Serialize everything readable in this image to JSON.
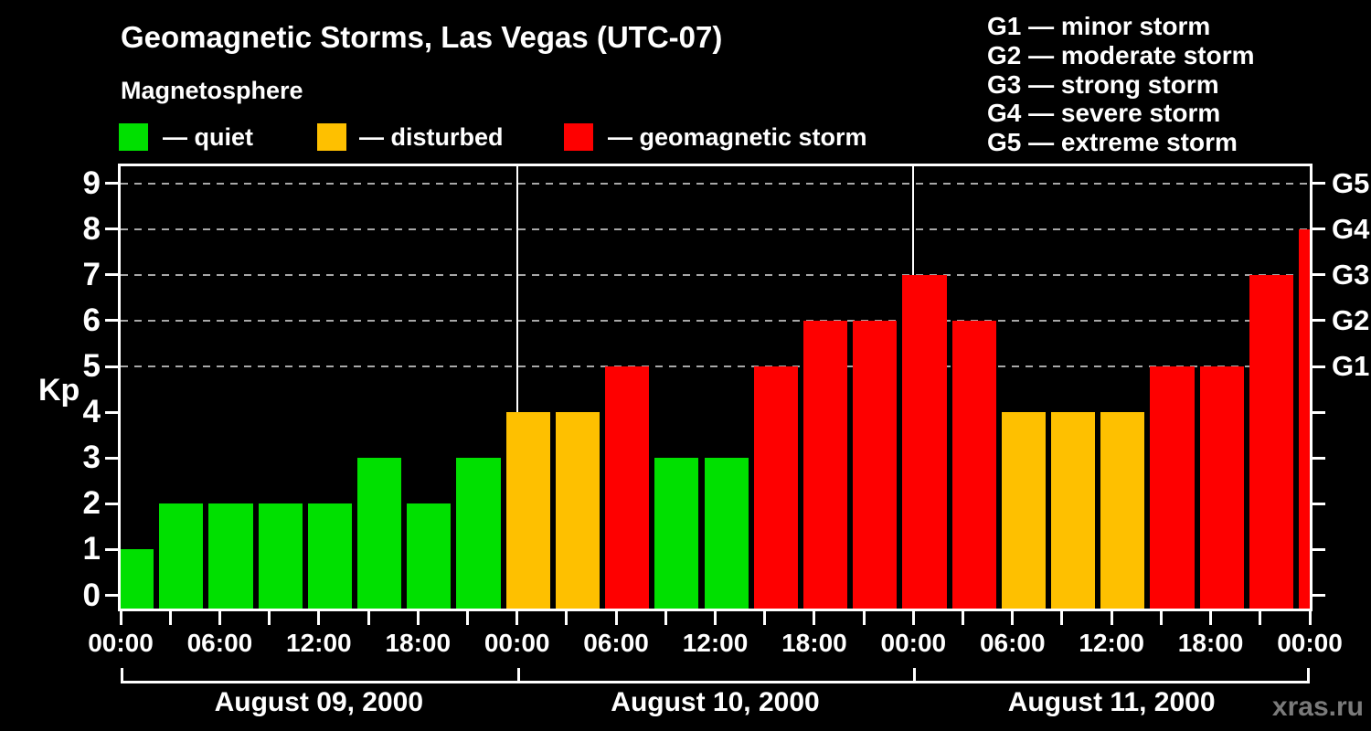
{
  "title": "Geomagnetic Storms, Las Vegas (UTC-07)",
  "subtitle": "Magnetosphere",
  "legend": {
    "items": [
      {
        "key": "quiet",
        "label": "— quiet",
        "color": "#00e000",
        "x_swatch": 130,
        "x_label": 178
      },
      {
        "key": "disturbed",
        "label": "— disturbed",
        "color": "#fec000",
        "x_swatch": 347,
        "x_label": 393
      },
      {
        "key": "storm",
        "label": "— geomagnetic storm",
        "color": "#fe0000",
        "x_swatch": 617,
        "x_label": 665
      }
    ]
  },
  "storm_scale_legend": [
    "G1 — minor storm",
    "G2 — moderate storm",
    "G3 — strong storm",
    "G4 — severe storm",
    "G5 — extreme storm"
  ],
  "watermark": "xras.ru",
  "colors": {
    "background": "#000000",
    "text": "#ffffff",
    "grid": "#a8a8a8",
    "day_separator": "#ffffff",
    "watermark": "#7a7a7a",
    "quiet": "#00e000",
    "disturbed": "#fec000",
    "storm": "#fe0000"
  },
  "chart_data": {
    "type": "bar",
    "title": "Geomagnetic Storms, Las Vegas (UTC-07)",
    "ylabel": "Kp",
    "ylim": [
      0,
      9
    ],
    "yticks": [
      0,
      1,
      2,
      3,
      4,
      5,
      6,
      7,
      8,
      9
    ],
    "grid": "dashed horizontal at Kp 5-9 only",
    "bar_interval_hours": 3,
    "x_tick_interval_hours": 3,
    "x_label_interval_hours": 6,
    "x_tick_labels_cycle": [
      "00:00",
      "06:00",
      "12:00",
      "18:00"
    ],
    "right_axis_levels": [
      {
        "label": "G1",
        "kp": 5
      },
      {
        "label": "G2",
        "kp": 6
      },
      {
        "label": "G3",
        "kp": 7
      },
      {
        "label": "G4",
        "kp": 8
      },
      {
        "label": "G5",
        "kp": 9
      }
    ],
    "color_rule": {
      "quiet_kp_max": 3,
      "disturbed_kp": 4,
      "storm_kp_min": 5
    },
    "days": [
      {
        "date": "August 09, 2000",
        "kp": [
          1,
          2,
          2,
          2,
          2,
          3,
          2,
          3
        ]
      },
      {
        "date": "August 10, 2000",
        "kp": [
          4,
          4,
          5,
          3,
          3,
          5,
          6,
          6
        ]
      },
      {
        "date": "August 11, 2000",
        "kp": [
          7,
          6,
          4,
          4,
          4,
          5,
          5,
          7
        ]
      }
    ],
    "next_interval_partial_kp": 8
  }
}
